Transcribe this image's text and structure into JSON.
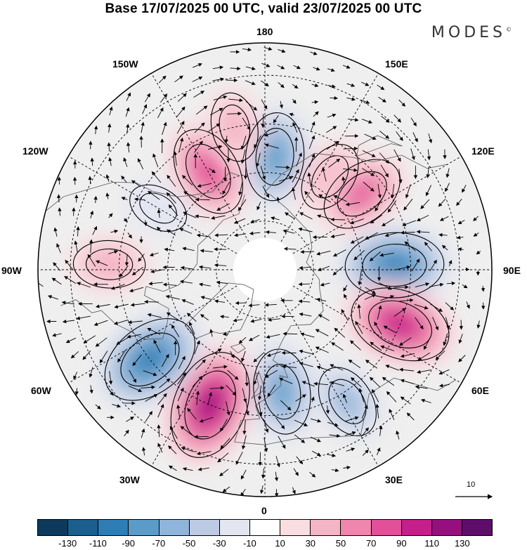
{
  "title": "Base 17/07/2025 00 UTC, valid 23/07/2025 00 UTC",
  "brand": "MODES",
  "brand_mark": "©",
  "longitude_labels": {
    "n180": "180",
    "e150": "150E",
    "e120": "120E",
    "e90": "90E",
    "e60": "60E",
    "e30": "30E",
    "s0": "0",
    "w30": "30W",
    "w60": "60W",
    "w90": "90W",
    "w120": "120W",
    "w150": "150W"
  },
  "reference_vector_label": "10",
  "colorbar": {
    "colors": [
      "#0d3a5c",
      "#1a5f8e",
      "#2f7db5",
      "#5a9cc9",
      "#8fb5da",
      "#bccbe3",
      "#e3e5f1",
      "#ffffff",
      "#f9dde1",
      "#f4b6c6",
      "#ee86ad",
      "#e2509a",
      "#c41f8a",
      "#960f7e",
      "#5e0d6b"
    ],
    "ticks": [
      "-130",
      "-110",
      "-90",
      "-70",
      "-50",
      "-30",
      "-10",
      "10",
      "30",
      "50",
      "70",
      "90",
      "110",
      "130"
    ]
  },
  "anomaly_centers": [
    {
      "lon": 175,
      "lat": 55,
      "value": -75
    },
    {
      "lon": 145,
      "lat": 55,
      "value": 45
    },
    {
      "lon": 128,
      "lat": 52,
      "value": 70
    },
    {
      "lon": 92,
      "lat": 50,
      "value": -95
    },
    {
      "lon": 68,
      "lat": 45,
      "value": 100
    },
    {
      "lon": 32,
      "lat": 42,
      "value": -50
    },
    {
      "lon": 8,
      "lat": 52,
      "value": -70
    },
    {
      "lon": -22,
      "lat": 45,
      "value": 115
    },
    {
      "lon": -52,
      "lat": 45,
      "value": -100
    },
    {
      "lon": -92,
      "lat": 42,
      "value": 45
    },
    {
      "lon": -120,
      "lat": 52,
      "value": -25
    },
    {
      "lon": -150,
      "lat": 55,
      "value": 80
    },
    {
      "lon": -168,
      "lat": 45,
      "value": 40
    }
  ]
}
